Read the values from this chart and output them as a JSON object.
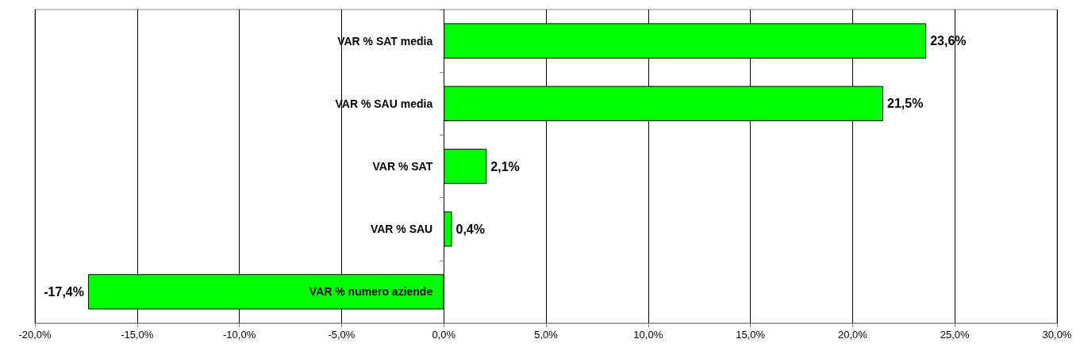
{
  "chart_data": {
    "type": "bar",
    "orientation": "horizontal",
    "categories": [
      "VAR % SAT media",
      "VAR % SAU media",
      "VAR % SAT",
      "VAR % SAU",
      "VAR % numero aziende"
    ],
    "values": [
      23.6,
      21.5,
      2.1,
      0.4,
      -17.4
    ],
    "value_labels": [
      "23,6%",
      "21,5%",
      "2,1%",
      "0,4%",
      "-17,4%"
    ],
    "color": "#00ff00",
    "xlim": [
      -20,
      30
    ],
    "xticks": [
      {
        "value": -20,
        "label": "-20,0%"
      },
      {
        "value": -15,
        "label": "-15,0%"
      },
      {
        "value": -10,
        "label": "-10,0%"
      },
      {
        "value": -5,
        "label": "-5,0%"
      },
      {
        "value": 0,
        "label": "0,0%"
      },
      {
        "value": 5,
        "label": "5,0%"
      },
      {
        "value": 10,
        "label": "10,0%"
      },
      {
        "value": 15,
        "label": "15,0%"
      },
      {
        "value": 20,
        "label": "20,0%"
      },
      {
        "value": 25,
        "label": "25,0%"
      },
      {
        "value": 30,
        "label": "30,0%"
      }
    ],
    "grid": "x"
  }
}
